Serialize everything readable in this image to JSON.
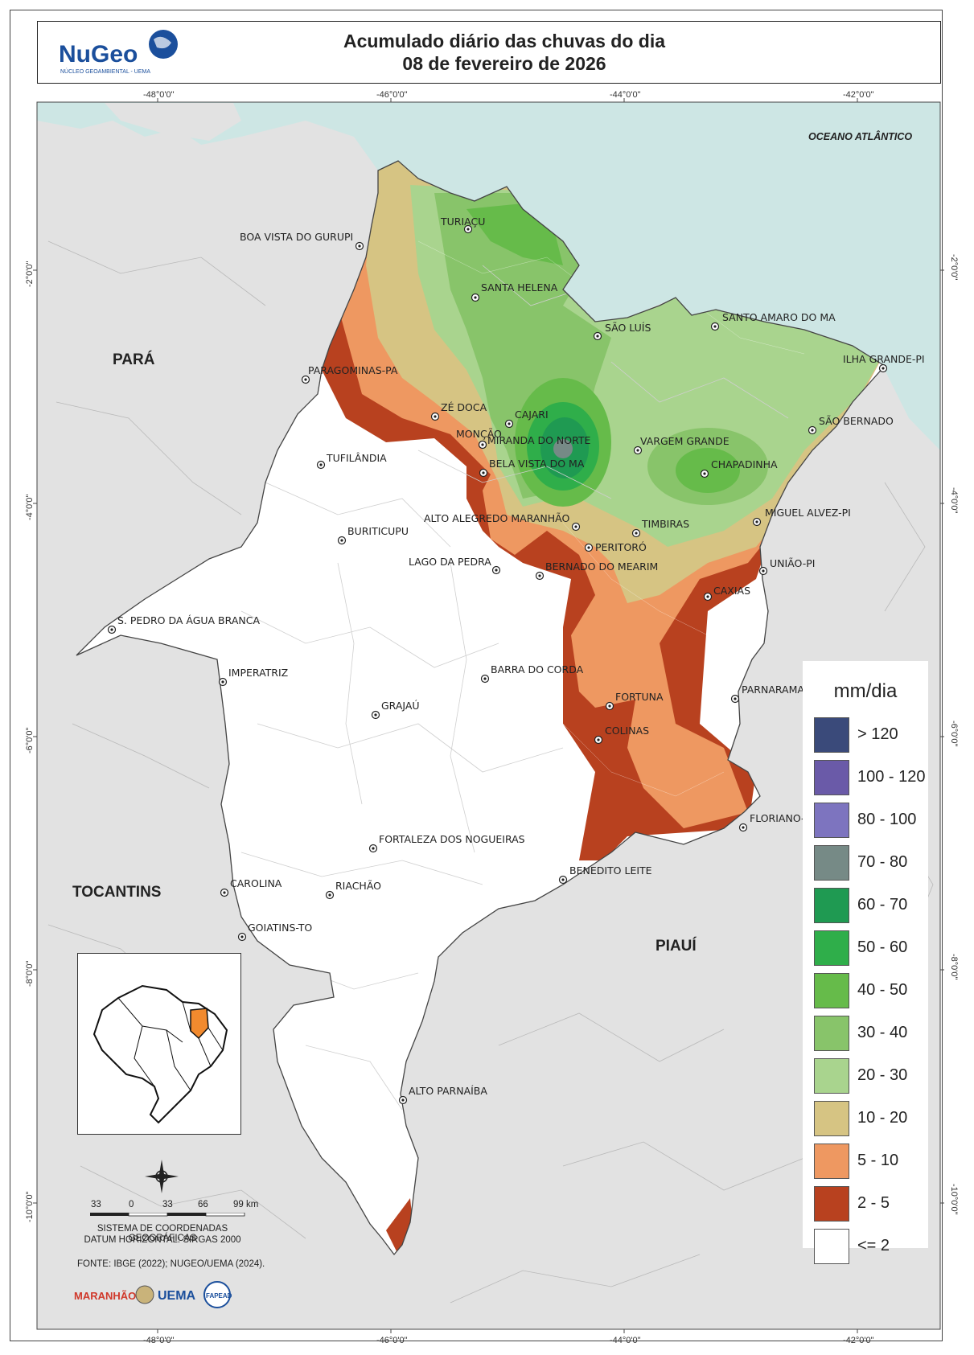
{
  "header": {
    "logo_text": "NuGeo",
    "logo_subtitle": "NÚCLEO GEOAMBIENTAL - UEMA",
    "title_line1": "Acumulado diário das chuvas do dia",
    "title_line2": "08 de fevereiro de 2026"
  },
  "grid": {
    "lon_labels": [
      "-48°0'0\"",
      "-46°0'0\"",
      "-44°0'0\"",
      "-42°0'0\""
    ],
    "lat_labels": [
      "-2°0'0\"",
      "-4°0'0\"",
      "-6°0'0\"",
      "-8°0'0\"",
      "-10°0'0\""
    ]
  },
  "map_labels": {
    "ocean": "OCEANO ATLÂNTICO",
    "states": [
      "PARÁ",
      "TOCANTINS",
      "PIAUÍ"
    ]
  },
  "cities": [
    {
      "name": "TURIAÇU"
    },
    {
      "name": "BOA VISTA DO GURUPI"
    },
    {
      "name": "SANTA HELENA"
    },
    {
      "name": "SÃO LUÍS"
    },
    {
      "name": "SANTO AMARO DO MA"
    },
    {
      "name": "ILHA GRANDE-PI"
    },
    {
      "name": "PARAGOMINAS-PA"
    },
    {
      "name": "ZÉ DOCA"
    },
    {
      "name": "CAJARI"
    },
    {
      "name": "MONÇÃO"
    },
    {
      "name": "MIRANDA DO NORTE"
    },
    {
      "name": "BELA VISTA DO MA"
    },
    {
      "name": "VARGEM GRANDE"
    },
    {
      "name": "SÃO BERNADO"
    },
    {
      "name": "CHAPADINHA"
    },
    {
      "name": "TUFILÂNDIA"
    },
    {
      "name": "ALTO ALEGREDO MARANHÃO"
    },
    {
      "name": "TIMBIRAS"
    },
    {
      "name": "MIGUEL ALVEZ-PI"
    },
    {
      "name": "BURITICUPU"
    },
    {
      "name": "PERITORÓ"
    },
    {
      "name": "LAGO DA PEDRA"
    },
    {
      "name": "BERNADO DO MEARIM"
    },
    {
      "name": "UNIÃO-PI"
    },
    {
      "name": "CAXIAS"
    },
    {
      "name": "S. PEDRO DA ÁGUA BRANCA"
    },
    {
      "name": "IMPERATRIZ"
    },
    {
      "name": "BARRA DO CORDA"
    },
    {
      "name": "PARNARAMA"
    },
    {
      "name": "FORTUNA"
    },
    {
      "name": "GRAJAÚ"
    },
    {
      "name": "COLINAS"
    },
    {
      "name": "FLORIANO-PI"
    },
    {
      "name": "FORTALEZA DOS NOGUEIRAS"
    },
    {
      "name": "BENEDITO LEITE"
    },
    {
      "name": "CAROLINA"
    },
    {
      "name": "RIACHÃO"
    },
    {
      "name": "GOIATINS-TO"
    },
    {
      "name": "ALTO PARNAÍBA"
    }
  ],
  "legend": {
    "title": "mm/dia",
    "items": [
      {
        "label": "> 120",
        "color": "#3a4a7a"
      },
      {
        "label": "100 - 120",
        "color": "#6a5aa8"
      },
      {
        "label": "80 - 100",
        "color": "#7d74bf"
      },
      {
        "label": "70 - 80",
        "color": "#768a86"
      },
      {
        "label": "60 - 70",
        "color": "#1f9a52"
      },
      {
        "label": "50 - 60",
        "color": "#2fae4a"
      },
      {
        "label": "40 - 50",
        "color": "#66bb4a"
      },
      {
        "label": "30 - 40",
        "color": "#88c46a"
      },
      {
        "label": "20 - 30",
        "color": "#a9d48e"
      },
      {
        "label": "10 - 20",
        "color": "#d6c483"
      },
      {
        "label": "5 - 10",
        "color": "#ee9861"
      },
      {
        "label": "2 - 5",
        "color": "#b8411f"
      },
      {
        "label": "<= 2",
        "color": "#ffffff"
      }
    ]
  },
  "scale_bar": {
    "ticks": [
      "33",
      "0",
      "33",
      "66",
      "99 km"
    ]
  },
  "footer": {
    "coord_system_line1": "SISTEMA DE COORDENADAS GEOGRÁFICAS",
    "coord_system_line2": "DATUM HORIZONTAL: SIRGAS 2000",
    "source": "FONTE: IBGE (2022); NUGEO/UEMA (2024).",
    "logo_labels": [
      "MARANHÃO",
      "UEMA",
      "FAPEAD"
    ]
  },
  "colors": {
    "ocean": "#cde6e4",
    "neighbor_land": "#e2e2e2",
    "outside_land": "#d7d7d7"
  }
}
